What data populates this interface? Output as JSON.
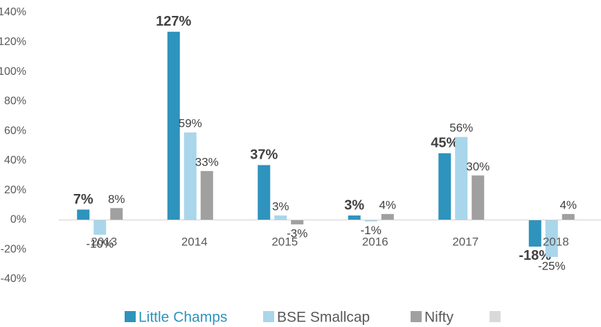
{
  "chart_data": {
    "type": "bar",
    "categories": [
      "2013",
      "2014",
      "2015",
      "2016",
      "2017",
      "2018"
    ],
    "series": [
      {
        "name": "Little Champs",
        "color": "#2e93bd",
        "values": [
          7,
          127,
          37,
          3,
          45,
          -18
        ],
        "value_labels": [
          "7%",
          "127%",
          "37%",
          "3%",
          "45%",
          "-18%"
        ]
      },
      {
        "name": "BSE Smallcap",
        "color": "#a9d6ea",
        "values": [
          -10,
          59,
          3,
          -1,
          56,
          -25
        ],
        "value_labels": [
          "-10%",
          "59%",
          "3%",
          "-1%",
          "56%",
          "-25%"
        ]
      },
      {
        "name": "Nifty",
        "color": "#a0a0a0",
        "values": [
          8,
          33,
          -3,
          4,
          30,
          4
        ],
        "value_labels": [
          "8%",
          "33%",
          "-3%",
          "4%",
          "30%",
          "4%"
        ]
      }
    ],
    "ylim": [
      -40,
      140
    ],
    "yticks": [
      {
        "value": -40,
        "label": "-40%"
      },
      {
        "value": -20,
        "label": "-20%"
      },
      {
        "value": 0,
        "label": "0%"
      },
      {
        "value": 20,
        "label": "20%"
      },
      {
        "value": 40,
        "label": "40%"
      },
      {
        "value": 60,
        "label": "60%"
      },
      {
        "value": 80,
        "label": "80%"
      },
      {
        "value": 100,
        "label": "100%"
      },
      {
        "value": 120,
        "label": "120%"
      },
      {
        "value": 140,
        "label": "140%"
      }
    ],
    "grid": false,
    "legend": "bottom"
  }
}
